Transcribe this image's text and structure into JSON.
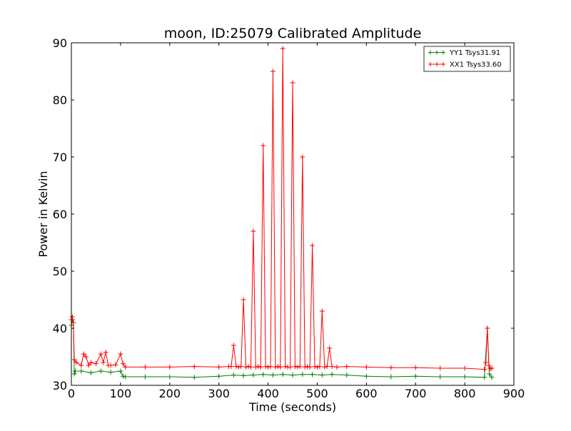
{
  "chart_data": {
    "type": "line",
    "title": "moon, ID:25079 Calibrated Amplitude",
    "xlabel": "Time (seconds)",
    "ylabel": "Power in Kelvin",
    "xlim": [
      0,
      900
    ],
    "ylim": [
      30,
      90
    ],
    "xticks": [
      0,
      100,
      200,
      300,
      400,
      500,
      600,
      700,
      800,
      900
    ],
    "yticks": [
      30,
      40,
      50,
      60,
      70,
      80,
      90
    ],
    "grid": false,
    "legend_position": "top-right",
    "marker": "+",
    "series": [
      {
        "name": "YY1 Tsys31.91",
        "color": "#008000",
        "x": [
          0,
          2,
          4,
          6,
          8,
          20,
          40,
          60,
          80,
          100,
          105,
          110,
          150,
          200,
          250,
          300,
          330,
          350,
          370,
          390,
          410,
          430,
          450,
          470,
          490,
          510,
          530,
          560,
          600,
          650,
          700,
          750,
          800,
          840,
          846,
          850,
          855
        ],
        "y": [
          40.5,
          41.5,
          41.0,
          32.0,
          32.5,
          32.5,
          32.2,
          32.5,
          32.3,
          32.5,
          31.6,
          31.5,
          31.5,
          31.5,
          31.4,
          31.6,
          31.8,
          31.7,
          31.8,
          31.9,
          31.8,
          31.9,
          31.8,
          31.9,
          31.9,
          31.8,
          31.9,
          31.8,
          31.6,
          31.5,
          31.6,
          31.5,
          31.5,
          31.4,
          40.0,
          32.0,
          31.4
        ]
      },
      {
        "name": "XX1 Tsys33.60",
        "color": "#ff0000",
        "x": [
          0,
          2,
          4,
          6,
          10,
          20,
          25,
          30,
          35,
          40,
          50,
          60,
          65,
          70,
          75,
          80,
          90,
          100,
          105,
          110,
          150,
          200,
          250,
          300,
          320,
          325,
          330,
          335,
          340,
          345,
          350,
          355,
          360,
          365,
          370,
          375,
          380,
          385,
          390,
          395,
          400,
          405,
          410,
          415,
          420,
          425,
          430,
          435,
          440,
          445,
          450,
          455,
          460,
          465,
          470,
          475,
          480,
          485,
          490,
          495,
          500,
          505,
          510,
          515,
          520,
          525,
          530,
          540,
          560,
          600,
          650,
          700,
          750,
          800,
          840,
          843,
          846,
          849,
          852,
          855
        ],
        "y": [
          41.5,
          42.0,
          41.0,
          34.5,
          34.0,
          33.5,
          35.5,
          35.0,
          33.5,
          34.0,
          33.8,
          35.5,
          34.0,
          35.8,
          33.5,
          33.5,
          33.6,
          35.5,
          33.8,
          33.2,
          33.2,
          33.2,
          33.3,
          33.2,
          33.3,
          33.3,
          37.0,
          33.3,
          33.2,
          33.3,
          45.0,
          33.2,
          33.3,
          33.2,
          57.0,
          33.2,
          33.3,
          33.2,
          72.0,
          33.3,
          33.2,
          33.3,
          85.0,
          33.2,
          33.3,
          33.2,
          89.0,
          33.3,
          33.2,
          33.2,
          83.0,
          33.3,
          33.2,
          33.3,
          70.0,
          33.2,
          33.3,
          33.2,
          54.5,
          33.3,
          33.2,
          33.3,
          43.0,
          33.2,
          33.3,
          36.5,
          33.3,
          33.2,
          33.3,
          33.2,
          33.1,
          33.1,
          33.0,
          33.0,
          32.8,
          34.0,
          40.0,
          33.5,
          32.9,
          33.0
        ]
      }
    ]
  }
}
